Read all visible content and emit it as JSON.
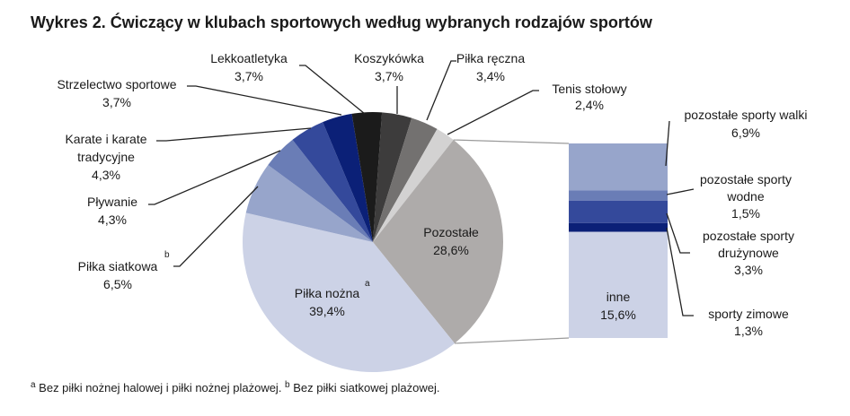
{
  "chart_data": {
    "type": "pie",
    "title": "Wykres 2. Ćwiczący w klubach sportowych według wybranych rodzajów sportów",
    "unit": "%",
    "slices": [
      {
        "label": "Koszykówka",
        "value": 3.7,
        "value_label": "3,7%",
        "color": "#3d3c3c"
      },
      {
        "label": "Piłka ręczna",
        "value": 3.4,
        "value_label": "3,4%",
        "color": "#737170"
      },
      {
        "label": "Tenis stołowy",
        "value": 2.4,
        "value_label": "2,4%",
        "color": "#d3d2d2"
      },
      {
        "label": "Pozostałe",
        "value": 28.6,
        "value_label": "28,6%",
        "color": "#aeabaa"
      },
      {
        "label": "Piłka nożna",
        "value": 39.4,
        "value_label": "39,4%",
        "color": "#ccd2e6",
        "footnote_mark": "a"
      },
      {
        "label": "Piłka siatkowa",
        "value": 6.5,
        "value_label": "6,5%",
        "color": "#97a5cb",
        "footnote_mark": "b"
      },
      {
        "label": "Pływanie",
        "value": 4.3,
        "value_label": "4,3%",
        "color": "#6a7db6"
      },
      {
        "label": "Karate i karate tradycyjne",
        "value": 4.3,
        "value_label": "4,3%",
        "color": "#34499b"
      },
      {
        "label": "Strzelectwo sportowe",
        "value": 3.7,
        "value_label": "3,7%",
        "color": "#0b2077"
      },
      {
        "label": "Lekkoatletyka",
        "value": 3.7,
        "value_label": "3,7%",
        "color": "#1b1b1b"
      }
    ],
    "breakdown_of": "Pozostałe",
    "breakdown": [
      {
        "label": "pozostałe sporty walki",
        "value": 6.9,
        "value_label": "6,9%",
        "color": "#97a5cb"
      },
      {
        "label": "pozostałe sporty wodne",
        "value": 1.5,
        "value_label": "1,5%",
        "color": "#6a7db6"
      },
      {
        "label": "pozostałe sporty drużynowe",
        "value": 3.3,
        "value_label": "3,3%",
        "color": "#34499b"
      },
      {
        "label": "sporty zimowe",
        "value": 1.3,
        "value_label": "1,3%",
        "color": "#0b2077"
      },
      {
        "label": "inne",
        "value": 15.6,
        "value_label": "15,6%",
        "color": "#ccd2e6"
      }
    ]
  },
  "labels": {
    "koszykowka": "Koszykówka",
    "pilka_reczna": "Piłka ręczna",
    "tenis_1": "Tenis stołowy",
    "pozostale": "Pozostałe",
    "pilka_nozna": "Piłka nożna",
    "pilka_siatkowa": "Piłka siatkowa",
    "plywanie": "Pływanie",
    "karate_1": "Karate i karate",
    "karate_2": "tradycyjne",
    "strzelectwo": "Strzelectwo sportowe",
    "lekkoatletyka": "Lekkoatletyka",
    "walki": "pozostałe sporty walki",
    "wodne_1": "pozostałe sporty",
    "wodne_2": "wodne",
    "druzynowe_1": "pozostałe sporty",
    "druzynowe_2": "drużynowe",
    "zimowe": "sporty zimowe",
    "inne": "inne",
    "mark_a": "a",
    "mark_b": "b"
  },
  "footnotes": {
    "a_mark": "a",
    "a_text": " Bez piłki nożnej halowej i piłki nożnej plażowej. ",
    "b_mark": "b",
    "b_text": " Bez piłki siatkowej plażowej."
  }
}
